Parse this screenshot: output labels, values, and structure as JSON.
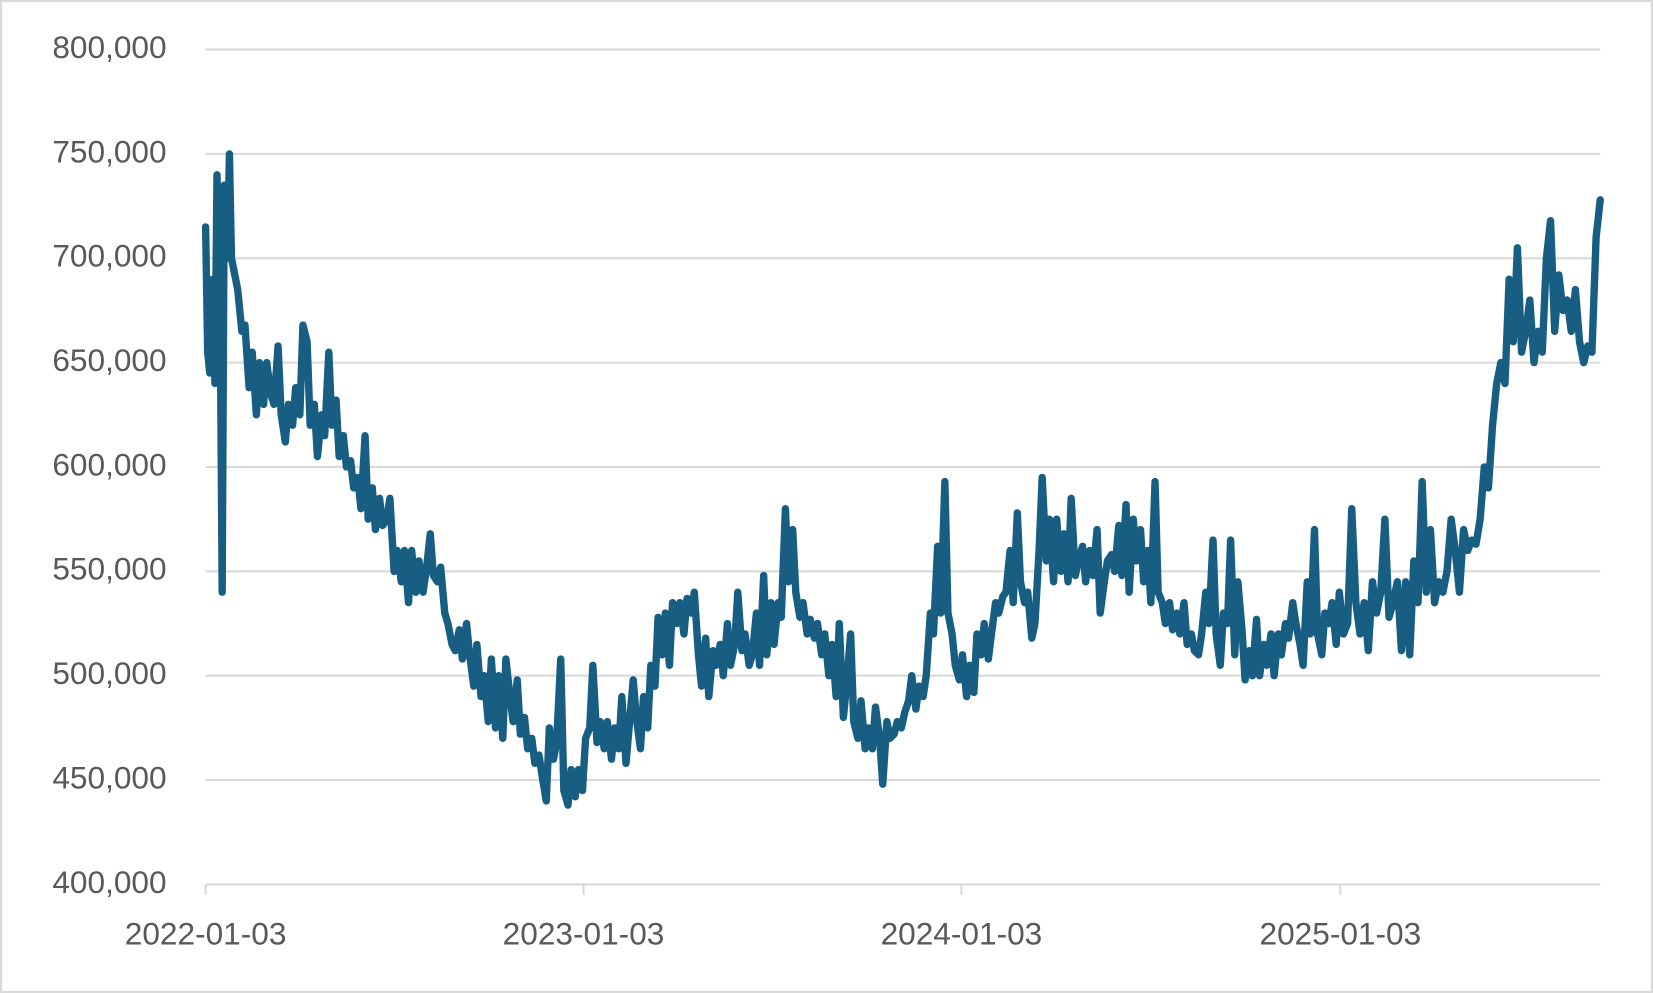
{
  "chart_data": {
    "type": "line",
    "color": "#175e82",
    "grid": true,
    "ylim": [
      400000,
      800000
    ],
    "yticks": [
      {
        "value": 400000,
        "label": "400,000"
      },
      {
        "value": 450000,
        "label": "450,000"
      },
      {
        "value": 500000,
        "label": "500,000"
      },
      {
        "value": 550000,
        "label": "550,000"
      },
      {
        "value": 600000,
        "label": "600,000"
      },
      {
        "value": 650000,
        "label": "650,000"
      },
      {
        "value": 700000,
        "label": "700,000"
      },
      {
        "value": 750000,
        "label": "750,000"
      },
      {
        "value": 800000,
        "label": "800,000"
      }
    ],
    "xlim": [
      "2022-01-03",
      "2025-09-11"
    ],
    "xticks": [
      "2022-01-03",
      "2023-01-03",
      "2024-01-03",
      "2025-01-03"
    ],
    "x": [
      "2022-01-03",
      "2022-01-05",
      "2022-01-07",
      "2022-01-10",
      "2022-01-12",
      "2022-01-14",
      "2022-01-17",
      "2022-01-19",
      "2022-01-21",
      "2022-01-24",
      "2022-01-26",
      "2022-01-28",
      "2022-02-03",
      "2022-02-07",
      "2022-02-10",
      "2022-02-14",
      "2022-02-17",
      "2022-02-21",
      "2022-02-24",
      "2022-02-28",
      "2022-03-03",
      "2022-03-07",
      "2022-03-10",
      "2022-03-14",
      "2022-03-17",
      "2022-03-21",
      "2022-03-24",
      "2022-03-28",
      "2022-03-31",
      "2022-04-04",
      "2022-04-07",
      "2022-04-11",
      "2022-04-14",
      "2022-04-18",
      "2022-04-21",
      "2022-04-25",
      "2022-04-28",
      "2022-05-02",
      "2022-05-05",
      "2022-05-09",
      "2022-05-12",
      "2022-05-16",
      "2022-05-19",
      "2022-05-23",
      "2022-05-26",
      "2022-05-30",
      "2022-06-02",
      "2022-06-06",
      "2022-06-09",
      "2022-06-13",
      "2022-06-16",
      "2022-06-20",
      "2022-06-23",
      "2022-06-27",
      "2022-06-30",
      "2022-07-04",
      "2022-07-07",
      "2022-07-11",
      "2022-07-14",
      "2022-07-18",
      "2022-07-21",
      "2022-07-25",
      "2022-07-28",
      "2022-08-01",
      "2022-08-04",
      "2022-08-08",
      "2022-08-11",
      "2022-08-15",
      "2022-08-18",
      "2022-08-22",
      "2022-08-25",
      "2022-08-29",
      "2022-09-01",
      "2022-09-05",
      "2022-09-08",
      "2022-09-12",
      "2022-09-15",
      "2022-09-19",
      "2022-09-22",
      "2022-09-26",
      "2022-09-29",
      "2022-10-03",
      "2022-10-06",
      "2022-10-10",
      "2022-10-13",
      "2022-10-17",
      "2022-10-20",
      "2022-10-24",
      "2022-10-27",
      "2022-10-31",
      "2022-11-03",
      "2022-11-07",
      "2022-11-10",
      "2022-11-14",
      "2022-11-17",
      "2022-11-21",
      "2022-11-24",
      "2022-11-28",
      "2022-12-01",
      "2022-12-05",
      "2022-12-08",
      "2022-12-12",
      "2022-12-15",
      "2022-12-19",
      "2022-12-22",
      "2022-12-26",
      "2022-12-29",
      "2023-01-02",
      "2023-01-05",
      "2023-01-09",
      "2023-01-12",
      "2023-01-16",
      "2023-01-19",
      "2023-01-23",
      "2023-01-26",
      "2023-01-30",
      "2023-02-02",
      "2023-02-06",
      "2023-02-09",
      "2023-02-13",
      "2023-02-16",
      "2023-02-20",
      "2023-02-23",
      "2023-02-27",
      "2023-03-02",
      "2023-03-06",
      "2023-03-09",
      "2023-03-13",
      "2023-03-16",
      "2023-03-20",
      "2023-03-23",
      "2023-03-27",
      "2023-03-30",
      "2023-04-03",
      "2023-04-06",
      "2023-04-10",
      "2023-04-13",
      "2023-04-17",
      "2023-04-20",
      "2023-04-24",
      "2023-04-27",
      "2023-05-01",
      "2023-05-04",
      "2023-05-08",
      "2023-05-11",
      "2023-05-15",
      "2023-05-18",
      "2023-05-22",
      "2023-05-25",
      "2023-05-29",
      "2023-06-01",
      "2023-06-05",
      "2023-06-08",
      "2023-06-12",
      "2023-06-15",
      "2023-06-19",
      "2023-06-22",
      "2023-06-26",
      "2023-06-29",
      "2023-07-03",
      "2023-07-06",
      "2023-07-10",
      "2023-07-13",
      "2023-07-17",
      "2023-07-20",
      "2023-07-24",
      "2023-07-27",
      "2023-07-31",
      "2023-08-03",
      "2023-08-07",
      "2023-08-10",
      "2023-08-14",
      "2023-08-17",
      "2023-08-21",
      "2023-08-24",
      "2023-08-28",
      "2023-08-31",
      "2023-09-04",
      "2023-09-07",
      "2023-09-11",
      "2023-09-14",
      "2023-09-18",
      "2023-09-21",
      "2023-09-25",
      "2023-09-28",
      "2023-10-02",
      "2023-10-05",
      "2023-10-09",
      "2023-10-12",
      "2023-10-16",
      "2023-10-19",
      "2023-10-23",
      "2023-10-26",
      "2023-10-30",
      "2023-11-02",
      "2023-11-06",
      "2023-11-09",
      "2023-11-13",
      "2023-11-16",
      "2023-11-20",
      "2023-11-23",
      "2023-11-27",
      "2023-11-30",
      "2023-12-04",
      "2023-12-07",
      "2023-12-11",
      "2023-12-14",
      "2023-12-18",
      "2023-12-21",
      "2023-12-25",
      "2023-12-28",
      "2024-01-01",
      "2024-01-04",
      "2024-01-08",
      "2024-01-11",
      "2024-01-15",
      "2024-01-18",
      "2024-01-22",
      "2024-01-25",
      "2024-01-29",
      "2024-02-01",
      "2024-02-05",
      "2024-02-08",
      "2024-02-12",
      "2024-02-15",
      "2024-02-19",
      "2024-02-22",
      "2024-02-26",
      "2024-02-29",
      "2024-03-04",
      "2024-03-07",
      "2024-03-11",
      "2024-03-14",
      "2024-03-18",
      "2024-03-21",
      "2024-03-25",
      "2024-03-28",
      "2024-04-01",
      "2024-04-04",
      "2024-04-08",
      "2024-04-11",
      "2024-04-15",
      "2024-04-18",
      "2024-04-22",
      "2024-04-25",
      "2024-04-29",
      "2024-05-02",
      "2024-05-06",
      "2024-05-09",
      "2024-05-13",
      "2024-05-16",
      "2024-05-20",
      "2024-05-23",
      "2024-05-27",
      "2024-05-30",
      "2024-06-03",
      "2024-06-06",
      "2024-06-10",
      "2024-06-13",
      "2024-06-17",
      "2024-06-20",
      "2024-06-24",
      "2024-06-27",
      "2024-07-01",
      "2024-07-04",
      "2024-07-08",
      "2024-07-11",
      "2024-07-15",
      "2024-07-18",
      "2024-07-22",
      "2024-07-25",
      "2024-07-29",
      "2024-08-01",
      "2024-08-05",
      "2024-08-08",
      "2024-08-12",
      "2024-08-15",
      "2024-08-19",
      "2024-08-22",
      "2024-08-26",
      "2024-08-29",
      "2024-09-02",
      "2024-09-05",
      "2024-09-09",
      "2024-09-12",
      "2024-09-16",
      "2024-09-19",
      "2024-09-23",
      "2024-09-26",
      "2024-09-30",
      "2024-10-03",
      "2024-10-07",
      "2024-10-10",
      "2024-10-14",
      "2024-10-17",
      "2024-10-21",
      "2024-10-24",
      "2024-10-28",
      "2024-10-31",
      "2024-11-04",
      "2024-11-07",
      "2024-11-11",
      "2024-11-14",
      "2024-11-18",
      "2024-11-21",
      "2024-11-25",
      "2024-11-28",
      "2024-12-02",
      "2024-12-05",
      "2024-12-09",
      "2024-12-12",
      "2024-12-16",
      "2024-12-19",
      "2024-12-23",
      "2024-12-26",
      "2024-12-30",
      "2025-01-02",
      "2025-01-06",
      "2025-01-10",
      "2025-01-14",
      "2025-01-18",
      "2025-01-22",
      "2025-01-26",
      "2025-01-30",
      "2025-02-03",
      "2025-02-07",
      "2025-02-11",
      "2025-02-15",
      "2025-02-19",
      "2025-02-23",
      "2025-02-27",
      "2025-03-03",
      "2025-03-07",
      "2025-03-11",
      "2025-03-15",
      "2025-03-19",
      "2025-03-23",
      "2025-03-27",
      "2025-03-31",
      "2025-04-04",
      "2025-04-08",
      "2025-04-12",
      "2025-04-16",
      "2025-04-20",
      "2025-04-24",
      "2025-04-28",
      "2025-05-02",
      "2025-05-06",
      "2025-05-10",
      "2025-05-14",
      "2025-05-18",
      "2025-05-22",
      "2025-05-26",
      "2025-05-30",
      "2025-06-03",
      "2025-06-07",
      "2025-06-11",
      "2025-06-15",
      "2025-06-19",
      "2025-06-23",
      "2025-06-27",
      "2025-07-01",
      "2025-07-05",
      "2025-07-09",
      "2025-07-13",
      "2025-07-17",
      "2025-07-21",
      "2025-07-25",
      "2025-07-29",
      "2025-08-02",
      "2025-08-06",
      "2025-08-10",
      "2025-08-14",
      "2025-08-18",
      "2025-08-22",
      "2025-08-26",
      "2025-08-30",
      "2025-09-03",
      "2025-09-07",
      "2025-09-11"
    ],
    "values": [
      715000,
      655000,
      645000,
      690000,
      640000,
      740000,
      680000,
      540000,
      735000,
      700000,
      750000,
      700000,
      685000,
      665000,
      668000,
      638000,
      655000,
      625000,
      650000,
      630000,
      650000,
      635000,
      630000,
      658000,
      625000,
      612000,
      630000,
      620000,
      638000,
      625000,
      668000,
      660000,
      620000,
      630000,
      605000,
      625000,
      615000,
      655000,
      620000,
      632000,
      605000,
      615000,
      600000,
      603000,
      590000,
      595000,
      580000,
      615000,
      575000,
      590000,
      570000,
      585000,
      572000,
      575000,
      585000,
      550000,
      560000,
      545000,
      560000,
      535000,
      560000,
      540000,
      555000,
      540000,
      550000,
      568000,
      548000,
      545000,
      552000,
      530000,
      525000,
      515000,
      512000,
      522000,
      508000,
      525000,
      510000,
      495000,
      515000,
      490000,
      500000,
      478000,
      508000,
      475000,
      500000,
      470000,
      508000,
      490000,
      478000,
      498000,
      472000,
      480000,
      465000,
      470000,
      458000,
      462000,
      452000,
      440000,
      475000,
      460000,
      468000,
      508000,
      445000,
      438000,
      455000,
      442000,
      455000,
      445000,
      470000,
      475000,
      505000,
      468000,
      478000,
      465000,
      478000,
      460000,
      475000,
      465000,
      490000,
      458000,
      475000,
      498000,
      480000,
      465000,
      490000,
      475000,
      505000,
      495000,
      528000,
      510000,
      530000,
      505000,
      535000,
      525000,
      535000,
      520000,
      537000,
      530000,
      540000,
      510000,
      495000,
      518000,
      490000,
      512000,
      505000,
      515000,
      500000,
      525000,
      505000,
      515000,
      540000,
      512000,
      520000,
      505000,
      510000,
      530000,
      505000,
      548000,
      510000,
      535000,
      515000,
      535000,
      528000,
      580000,
      545000,
      570000,
      540000,
      528000,
      535000,
      520000,
      527000,
      518000,
      525000,
      510000,
      520000,
      500000,
      515000,
      490000,
      525000,
      480000,
      495000,
      520000,
      478000,
      470000,
      488000,
      465000,
      475000,
      465000,
      485000,
      470000,
      448000,
      478000,
      470000,
      472000,
      478000,
      475000,
      482000,
      488000,
      500000,
      484000,
      495000,
      490000,
      500000,
      530000,
      520000,
      562000,
      530000,
      593000,
      530000,
      520000,
      505000,
      498000,
      510000,
      490000,
      505000,
      492000,
      520000,
      510000,
      525000,
      508000,
      520000,
      535000,
      530000,
      538000,
      540000,
      560000,
      535000,
      578000,
      545000,
      535000,
      540000,
      518000,
      525000,
      560000,
      595000,
      555000,
      575000,
      545000,
      575000,
      550000,
      568000,
      545000,
      585000,
      548000,
      555000,
      562000,
      545000,
      560000,
      548000,
      570000,
      530000,
      545000,
      555000,
      558000,
      550000,
      572000,
      548000,
      582000,
      540000,
      575000,
      555000,
      570000,
      545000,
      560000,
      535000,
      593000,
      540000,
      535000,
      525000,
      535000,
      522000,
      530000,
      520000,
      535000,
      515000,
      520000,
      512000,
      510000,
      520000,
      540000,
      525000,
      565000,
      520000,
      505000,
      530000,
      525000,
      565000,
      510000,
      545000,
      522000,
      498000,
      512000,
      500000,
      527000,
      500000,
      515000,
      505000,
      520000,
      500000,
      520000,
      510000,
      525000,
      518000,
      535000,
      525000,
      515000,
      505000,
      545000,
      520000,
      570000,
      520000,
      510000,
      530000,
      525000,
      535000,
      515000,
      540000,
      520000,
      525000,
      580000,
      535000,
      520000,
      535000,
      512000,
      545000,
      530000,
      540000,
      575000,
      528000,
      535000,
      545000,
      512000,
      545000,
      510000,
      555000,
      535000,
      593000,
      540000,
      570000,
      535000,
      545000,
      540000,
      550000,
      575000,
      560000,
      540000,
      570000,
      560000,
      565000,
      563000,
      575000,
      600000,
      590000,
      620000,
      640000,
      650000,
      640000,
      690000,
      660000,
      705000,
      655000,
      665000,
      680000,
      650000,
      665000,
      655000,
      700000,
      718000,
      665000,
      692000,
      675000,
      680000,
      665000,
      685000,
      660000,
      650000,
      658000,
      655000,
      710000,
      728000
    ]
  }
}
